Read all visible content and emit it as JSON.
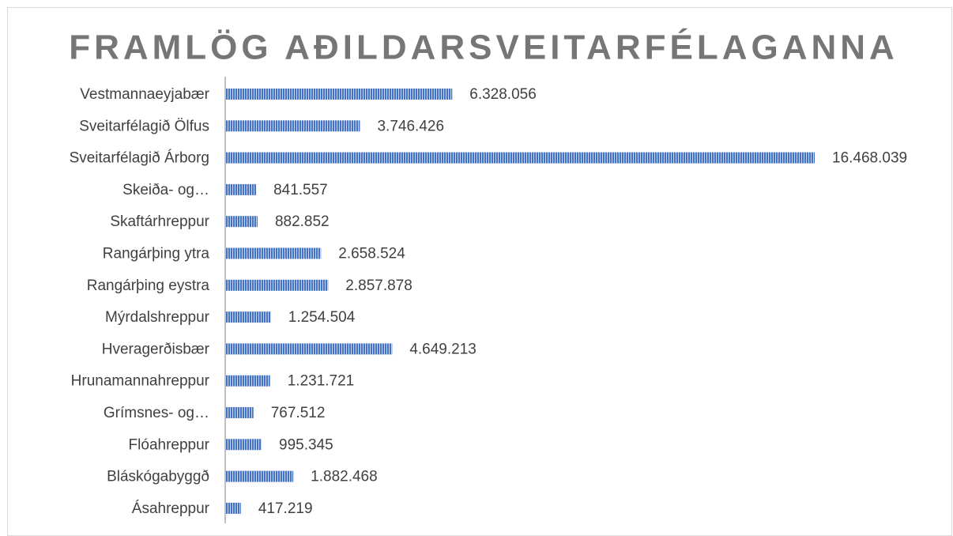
{
  "chart_data": {
    "type": "bar",
    "orientation": "horizontal",
    "title": "FRAMLÖG AÐILDARSVEITARFÉLAGANNA",
    "categories": [
      "Vestmannaeyjabær",
      "Sveitarfélagið Ölfus",
      "Sveitarfélagið Árborg",
      "Skeiða- og…",
      "Skaftárhreppur",
      "Rangárþing ytra",
      "Rangárþing eystra",
      "Mýrdalshreppur",
      "Hveragerðisbær",
      "Hrunamannahreppur",
      "Grímsnes- og…",
      "Flóahreppur",
      "Bláskógabyggð",
      "Ásahreppur"
    ],
    "values": [
      6328056,
      3746426,
      16468039,
      841557,
      882852,
      2658524,
      2857878,
      1254504,
      4649213,
      1231721,
      767512,
      995345,
      1882468,
      417219
    ],
    "value_labels": [
      "6.328.056",
      "3.746.426",
      "16.468.039",
      "841.557",
      "882.852",
      "2.658.524",
      "2.857.878",
      "1.254.504",
      "4.649.213",
      "1.231.721",
      "767.512",
      "995.345",
      "1.882.468",
      "417.219"
    ],
    "color": "#4472c4"
  }
}
